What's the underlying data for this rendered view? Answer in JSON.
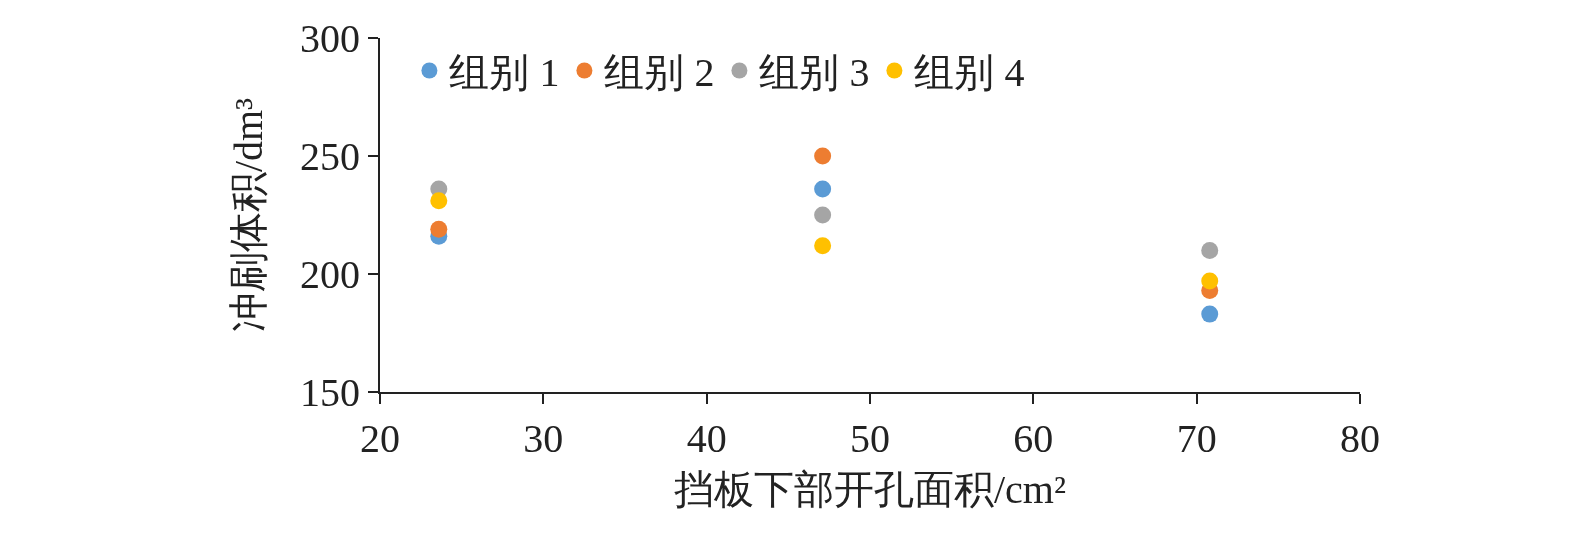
{
  "chart_data": {
    "type": "scatter",
    "xlabel": "挡板下部开孔面积/cm²",
    "ylabel": "冲刷体积/dm³",
    "x": [
      23.6,
      47.1,
      70.8
    ],
    "series": [
      {
        "name": "组别 1",
        "color": "#5b9bd5",
        "values": [
          216,
          236,
          183
        ]
      },
      {
        "name": "组别 2",
        "color": "#ed7d31",
        "values": [
          219,
          250,
          193
        ]
      },
      {
        "name": "组别 3",
        "color": "#a5a5a5",
        "values": [
          236,
          225,
          210
        ]
      },
      {
        "name": "组别 4",
        "color": "#ffc000",
        "values": [
          231,
          212,
          197
        ]
      }
    ],
    "xlim": [
      20,
      80
    ],
    "xticks": [
      20,
      30,
      40,
      50,
      60,
      70,
      80
    ],
    "ylim": [
      150,
      300
    ],
    "yticks": [
      150,
      200,
      250,
      300
    ],
    "legend": "top left",
    "marker": "circle"
  }
}
